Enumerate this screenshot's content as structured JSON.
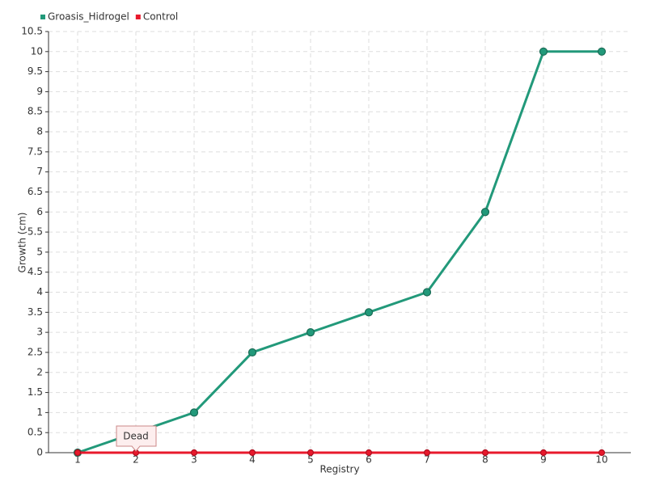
{
  "chart_data": {
    "type": "line",
    "x_label": "Registry",
    "y_label": "Growth (cm)",
    "x": [
      1,
      2,
      3,
      4,
      5,
      6,
      7,
      8,
      9,
      10
    ],
    "series": [
      {
        "name": "Groasis_Hidrogel",
        "color": "#22997a",
        "values": [
          0,
          0.5,
          1,
          2.5,
          3,
          3.5,
          4,
          6,
          10,
          10
        ]
      },
      {
        "name": "Control",
        "color": "#e8192c",
        "values": [
          0,
          0,
          0,
          0,
          0,
          0,
          0,
          0,
          0,
          0
        ]
      }
    ],
    "xlim": [
      0.5,
      10.5
    ],
    "ylim": [
      0,
      10.5
    ],
    "yticks": [
      0,
      0.5,
      1,
      1.5,
      2,
      2.5,
      3,
      3.5,
      4,
      4.5,
      5,
      5.5,
      6,
      6.5,
      7,
      7.5,
      8,
      8.5,
      9,
      9.5,
      10,
      10.5
    ],
    "grid": true,
    "legend": "top-left",
    "annotations": [
      {
        "text": "Dead",
        "x": 2,
        "y": 0
      }
    ]
  }
}
